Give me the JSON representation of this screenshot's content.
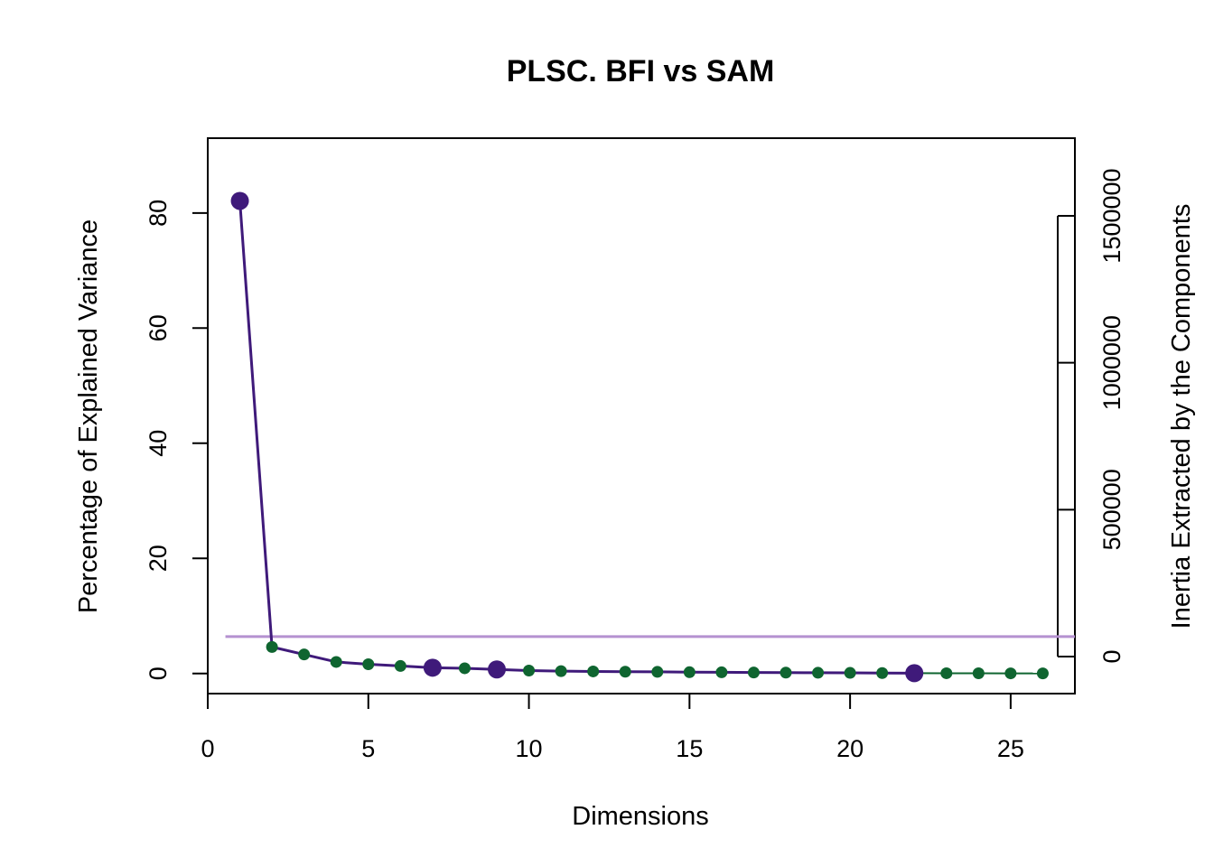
{
  "chart_data": {
    "type": "line",
    "title": "PLSC. BFI vs SAM",
    "xlabel": "Dimensions",
    "ylabel": "Percentage of Explained Variance",
    "ylabel_right": "Inertia Extracted by the Components",
    "xlim": [
      0,
      27
    ],
    "ylim": [
      -3.5,
      93
    ],
    "ylim_right": [
      0,
      1500000
    ],
    "x_ticks": [
      "0",
      "5",
      "10",
      "15",
      "20",
      "25"
    ],
    "y_ticks": [
      "0",
      "20",
      "40",
      "60",
      "80"
    ],
    "y_right_ticks": [
      "0",
      "500000",
      "1000000",
      "1500000"
    ],
    "threshold_line": 6.4,
    "grid": false,
    "colors": {
      "significant": "#3f1a7a",
      "nonsignificant": "#0f6530",
      "threshold": "#b591d0"
    },
    "x": [
      1,
      2,
      3,
      4,
      5,
      6,
      7,
      8,
      9,
      10,
      11,
      12,
      13,
      14,
      15,
      16,
      17,
      18,
      19,
      20,
      21,
      22,
      23,
      24,
      25,
      26
    ],
    "series": [
      {
        "values": [
          82.1,
          4.6,
          3.3,
          2.0,
          1.6,
          1.3,
          1.0,
          0.9,
          0.7,
          0.5,
          0.4,
          0.35,
          0.3,
          0.28,
          0.22,
          0.2,
          0.16,
          0.14,
          0.12,
          0.1,
          0.07,
          0.05,
          0.04,
          0.03,
          0.02,
          0.01
        ]
      }
    ],
    "significant_dimensions": [
      1,
      7,
      9,
      22
    ]
  }
}
